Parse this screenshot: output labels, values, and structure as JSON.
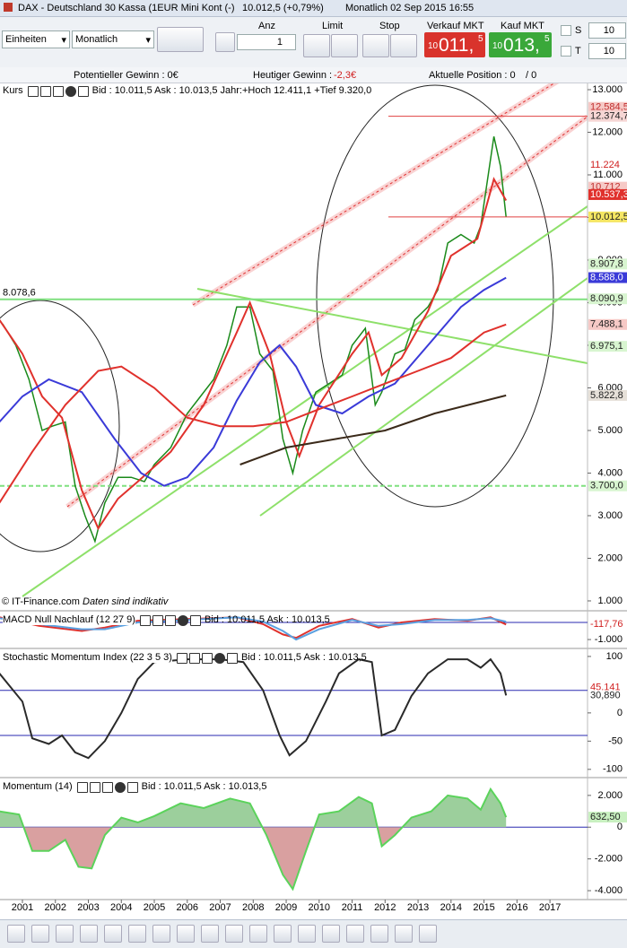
{
  "toolbar": {
    "title": "DAX - Deutschland 30 Kassa (1EUR Mini Kont (-)",
    "last": "10.012,5 (+0,79%)",
    "period_time": "Monatlich  02 Sep 2015 16:55",
    "units": "Einheiten",
    "period": "Monatlich",
    "qty_label": "Anz",
    "qty": "1",
    "limit": "Limit",
    "stop": "Stop",
    "sell_label": "Verkauf MKT",
    "sell": {
      "small": "10",
      "big": "011,",
      "sup": "5"
    },
    "buy_label": "Kauf MKT",
    "buy": {
      "small": "10",
      "big": "013,",
      "sup": "5"
    },
    "s_label": "S",
    "s_value": "10",
    "t_label": "T",
    "t_value": "10"
  },
  "info_bar": {
    "potential": "Potentieller Gewinn : 0€",
    "today_label": "Heutiger Gewinn : ",
    "today": "-2,3€",
    "position": "Aktuelle Position : 0",
    "position_total": "/ 0"
  },
  "panels": [
    {
      "name": "Kurs",
      "info": "Bid : 10.011,5 Ask : 10.013,5 Jahr:+Hoch 12.411,1 +Tief 9.320,0"
    },
    {
      "name": "MACD Null Nachlauf (12 27 9)",
      "info": "Bid : 10.011,5 Ask : 10.013,5"
    },
    {
      "name": "Stochastic Momentum Index (22 3 5 3)",
      "info": "Bid : 10.011,5 Ask : 10.013,5"
    },
    {
      "name": "Momentum (14)",
      "info": "Bid : 10.011,5 Ask : 10.013,5"
    }
  ],
  "footer": {
    "copyright": "© IT-Finance.com",
    "note": "Daten sind indikativ"
  },
  "chart_data": [
    {
      "type": "line",
      "xlim": [
        2000.32,
        2018.14
      ],
      "ylim": [
        789,
        13147
      ],
      "yticks": [
        {
          "value": 1000,
          "label": "1.000"
        },
        {
          "value": 2000,
          "label": "2.000"
        },
        {
          "value": 3000,
          "label": "3.000"
        },
        {
          "value": 4000,
          "label": "4.000"
        },
        {
          "value": 5000,
          "label": "5.000"
        },
        {
          "value": 6000,
          "label": "6.000"
        },
        {
          "value": 7000,
          "label": "7.000"
        },
        {
          "value": 8000,
          "label": "8.000"
        },
        {
          "value": 9000,
          "label": "9.000"
        },
        {
          "value": 10000,
          "label": "10.000"
        },
        {
          "value": 11000,
          "label": "11.000"
        },
        {
          "value": 12000,
          "label": "12.000"
        },
        {
          "value": 13000,
          "label": "13.000"
        }
      ],
      "series": [
        {
          "color": "#1a8a1a",
          "x": [
            2000.4,
            2000.8,
            2001.2,
            2001.6,
            2001.9,
            2002.3,
            2002.6,
            2002.9,
            2003.2,
            2003.5,
            2003.9,
            2004.3,
            2004.7,
            2005.0,
            2005.5,
            2006.0,
            2006.4,
            2006.8,
            2007.2,
            2007.5,
            2007.9,
            2008.2,
            2008.6,
            2008.9,
            2009.2,
            2009.5,
            2009.9,
            2010.3,
            2010.7,
            2011.0,
            2011.4,
            2011.7,
            2011.9,
            2012.3,
            2012.6,
            2012.9,
            2013.3,
            2013.6,
            2013.9,
            2014.3,
            2014.7,
            2014.9,
            2015.3,
            2015.5,
            2015.67
          ],
          "values": [
            7500,
            7000,
            6200,
            5000,
            5100,
            5200,
            3700,
            3000,
            2400,
            3300,
            3900,
            3900,
            3800,
            4200,
            4600,
            5400,
            5800,
            6200,
            7000,
            7900,
            7900,
            6800,
            6400,
            4800,
            4000,
            5000,
            5900,
            6100,
            6300,
            7000,
            7400,
            5600,
            5900,
            6800,
            6900,
            7600,
            7900,
            8300,
            9400,
            9600,
            9400,
            9800,
            11900,
            11200,
            10012.5
          ]
        },
        {
          "color": "#e0312c",
          "x": [
            2000.3,
            2001.0,
            2001.6,
            2002.2,
            2002.8,
            2003.3,
            2003.9,
            2004.5,
            2005.5,
            2006.5,
            2007.5,
            2007.9,
            2008.5,
            2009.0,
            2009.4,
            2010.0,
            2011.0,
            2011.5,
            2011.9,
            2012.5,
            2013.3,
            2014.0,
            2014.8,
            2015.3,
            2015.67
          ],
          "values": [
            7600,
            6800,
            5800,
            5300,
            3600,
            2700,
            3400,
            3800,
            4500,
            5600,
            7300,
            8000,
            6800,
            5200,
            4400,
            5600,
            6800,
            7300,
            6300,
            6700,
            7800,
            9100,
            9500,
            10900,
            10400
          ]
        },
        {
          "color": "#3a3ad8",
          "x": [
            2000.3,
            2001.0,
            2001.8,
            2002.8,
            2003.8,
            2004.6,
            2005.3,
            2006.0,
            2006.8,
            2007.5,
            2008.2,
            2008.8,
            2009.3,
            2009.9,
            2010.7,
            2011.5,
            2012.3,
            2013.3,
            2014.3,
            2015.0,
            2015.67
          ],
          "values": [
            5200,
            5800,
            6200,
            5900,
            4800,
            4000,
            3700,
            3900,
            4600,
            5700,
            6600,
            7000,
            6500,
            5600,
            5400,
            5800,
            6100,
            7000,
            7900,
            8300,
            8588
          ]
        },
        {
          "color": "#e0312c",
          "x": [
            2000.3,
            2001.3,
            2002.3,
            2003.3,
            2004.0,
            2005.0,
            2006.0,
            2007.0,
            2008.0,
            2009.0,
            2010.0,
            2011.0,
            2012.0,
            2013.0,
            2014.0,
            2015.0,
            2015.67
          ],
          "values": [
            3300,
            4500,
            5600,
            6400,
            6500,
            6000,
            5300,
            5100,
            5100,
            5200,
            5500,
            5800,
            6100,
            6400,
            6700,
            7300,
            7488.1
          ]
        },
        {
          "color": "#3b2a1a",
          "x": [
            2007.6,
            2009.0,
            2010.5,
            2012.0,
            2013.5,
            2015.67
          ],
          "values": [
            4200,
            4600,
            4800,
            5000,
            5400,
            5822.8
          ]
        }
      ],
      "hlines": [
        {
          "value": 8078.6,
          "label": "8.078,6",
          "color": "#7fe07f"
        },
        {
          "value": 3700,
          "color": "#7fe07f",
          "dashed": true
        }
      ],
      "markers": [
        {
          "value": 12584.5,
          "label": "12.584,5",
          "bg": "#f6c9c6",
          "fg": "#c03030"
        },
        {
          "value": 12374.7,
          "label": "12.374,7",
          "bg": "#f6d6d4",
          "fg": "#222",
          "line": "#e04040"
        },
        {
          "value": 11224,
          "label": "11.224",
          "bg": "#ffffff",
          "fg": "#d02020"
        },
        {
          "value": 10712,
          "label": "10.712",
          "bg": "#f6c9c6",
          "fg": "#c03030"
        },
        {
          "value": 10537.3,
          "label": "10.537,3",
          "bg": "#e0312c",
          "fg": "#ffffff"
        },
        {
          "value": 10012.5,
          "label": "10.012,5",
          "bg": "#f5e663",
          "fg": "#222",
          "line": "#e04040"
        },
        {
          "value": 8907.8,
          "label": "8.907,8",
          "bg": "#d8f5d0",
          "fg": "#222"
        },
        {
          "value": 8588,
          "label": "8.588,0",
          "bg": "#3a3ad8",
          "fg": "#ffffff"
        },
        {
          "value": 8090.9,
          "label": "8.090,9",
          "bg": "#d8f5d0",
          "fg": "#222"
        },
        {
          "value": 7488.1,
          "label": "7.488,1",
          "bg": "#f6c9c6",
          "fg": "#222"
        },
        {
          "value": 6975.1,
          "label": "6.975,1",
          "bg": "#d8f5d0",
          "fg": "#222"
        },
        {
          "value": 5822.8,
          "label": "5.822,8",
          "bg": "#e6e0d8",
          "fg": "#222"
        },
        {
          "value": 3700,
          "label": "3.700,0",
          "bg": "#d8f5d0",
          "fg": "#222"
        }
      ]
    },
    {
      "type": "line",
      "xlim": [
        2000.32,
        2018.14
      ],
      "ylim": [
        -1470,
        580
      ],
      "yticks": [
        {
          "value": -1000,
          "label": "-1.000"
        }
      ],
      "levels": [
        0
      ],
      "series": [
        {
          "color": "#e0312c",
          "x": [
            2000.3,
            2001.5,
            2002.8,
            2003.5,
            2004.5,
            2006,
            2007.5,
            2008.3,
            2008.9,
            2009.3,
            2010,
            2011,
            2011.8,
            2012.5,
            2013.5,
            2014.5,
            2015.2,
            2015.67
          ],
          "values": [
            300,
            -200,
            -500,
            -300,
            100,
            200,
            300,
            -100,
            -700,
            -900,
            -200,
            200,
            -300,
            0,
            200,
            100,
            300,
            -117.76
          ]
        },
        {
          "color": "#5aa0e0",
          "x": [
            2000.3,
            2001.5,
            2002.8,
            2003.5,
            2004.5,
            2006,
            2007.5,
            2008.3,
            2008.9,
            2009.3,
            2010,
            2011,
            2011.8,
            2012.5,
            2013.5,
            2014.5,
            2015.2,
            2015.67
          ],
          "values": [
            250,
            -100,
            -400,
            -400,
            0,
            150,
            300,
            50,
            -500,
            -1000,
            -400,
            150,
            -200,
            -100,
            150,
            150,
            250,
            50
          ]
        }
      ],
      "markers": [
        {
          "value": -117.76,
          "label": "-117,76",
          "bg": "#ffffff",
          "fg": "#d02020"
        }
      ]
    },
    {
      "type": "line",
      "xlim": [
        2000.32,
        2018.14
      ],
      "ylim": [
        -113,
        111
      ],
      "yticks": [
        100,
        0,
        -50,
        -100
      ],
      "levels": [
        40,
        -40
      ],
      "series": [
        {
          "color": "#2a2a2a",
          "x": [
            2000.3,
            2001.0,
            2001.3,
            2001.8,
            2002.2,
            2002.6,
            2003.0,
            2003.5,
            2004.0,
            2004.5,
            2005.0,
            2006.0,
            2007.0,
            2007.7,
            2008.3,
            2008.8,
            2009.1,
            2009.6,
            2010.2,
            2010.6,
            2011.2,
            2011.6,
            2011.9,
            2012.3,
            2012.8,
            2013.3,
            2013.9,
            2014.5,
            2014.9,
            2015.2,
            2015.5,
            2015.67
          ],
          "values": [
            70,
            20,
            -45,
            -55,
            -40,
            -70,
            -80,
            -50,
            0,
            60,
            90,
            95,
            95,
            90,
            40,
            -40,
            -75,
            -50,
            20,
            70,
            95,
            90,
            -40,
            -30,
            30,
            70,
            95,
            95,
            80,
            95,
            70,
            30.89
          ]
        }
      ],
      "markers": [
        {
          "value": 45.141,
          "label": "45,141",
          "bg": "#ffffff",
          "fg": "#d02020"
        },
        {
          "value": 30.89,
          "label": "30,890",
          "bg": "#ffffff",
          "fg": "#222"
        }
      ]
    },
    {
      "type": "area",
      "xlim": [
        2000.32,
        2018.14
      ],
      "ylim": [
        -4505,
        3009
      ],
      "yticks": [
        {
          "value": 2000,
          "label": "2.000"
        },
        0,
        {
          "value": -2000,
          "label": "-2.000"
        },
        {
          "value": -4000,
          "label": "-4.000"
        }
      ],
      "levels": [
        0
      ],
      "xticks": [
        2001,
        2002,
        2003,
        2004,
        2005,
        2006,
        2007,
        2008,
        2009,
        2010,
        2011,
        2012,
        2013,
        2014,
        2015,
        2016,
        2017
      ],
      "series": [
        {
          "color": "#5bd35b",
          "x": [
            2000.3,
            2000.9,
            2001.3,
            2001.8,
            2002.3,
            2002.7,
            2003.1,
            2003.5,
            2004.0,
            2004.5,
            2005.0,
            2005.8,
            2006.5,
            2007.3,
            2007.9,
            2008.4,
            2008.9,
            2009.2,
            2009.6,
            2010.0,
            2010.6,
            2011.2,
            2011.6,
            2011.9,
            2012.3,
            2012.8,
            2013.4,
            2013.9,
            2014.5,
            2014.9,
            2015.2,
            2015.5,
            2015.67
          ],
          "values": [
            1000,
            800,
            -1500,
            -1500,
            -800,
            -2500,
            -2600,
            -500,
            600,
            300,
            700,
            1500,
            1200,
            1800,
            1500,
            -500,
            -3000,
            -3900,
            -1500,
            800,
            1000,
            1900,
            1500,
            -1200,
            -500,
            600,
            1000,
            2000,
            1800,
            1100,
            2400,
            1500,
            632.5
          ]
        }
      ],
      "markers": [
        {
          "value": 632.5,
          "label": "632,50",
          "bg": "#c8f0c0",
          "fg": "#222"
        }
      ]
    }
  ]
}
